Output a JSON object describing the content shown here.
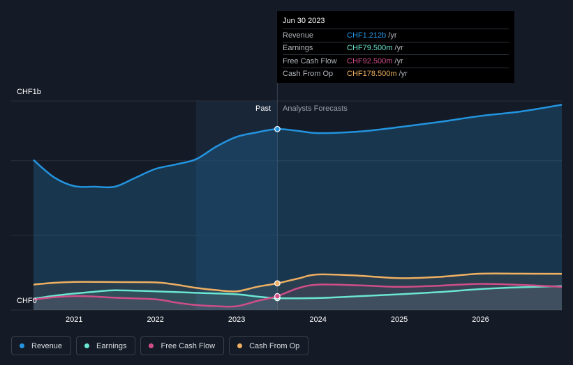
{
  "colors": {
    "revenue": "#2394df",
    "earnings": "#6be6d0",
    "free_cash_flow": "#d04e88",
    "cash_from_op": "#efb062",
    "background": "#151b26",
    "grid": "#2a303b"
  },
  "tooltip": {
    "date": "Jun 30 2023",
    "rows": [
      {
        "label": "Revenue",
        "value": "CHF1.212b",
        "unit": "/yr",
        "color": "#2394df"
      },
      {
        "label": "Earnings",
        "value": "CHF79.500m",
        "unit": "/yr",
        "color": "#6be6d0"
      },
      {
        "label": "Free Cash Flow",
        "value": "CHF92.500m",
        "unit": "/yr",
        "color": "#d04e88"
      },
      {
        "label": "Cash From Op",
        "value": "CHF178.500m",
        "unit": "/yr",
        "color": "#efb062"
      }
    ]
  },
  "regions": {
    "past_label": "Past",
    "forecast_label": "Analysts Forecasts"
  },
  "legend": [
    {
      "label": "Revenue",
      "color": "#2394df"
    },
    {
      "label": "Earnings",
      "color": "#6be6d0"
    },
    {
      "label": "Free Cash Flow",
      "color": "#d04e88"
    },
    {
      "label": "Cash From Op",
      "color": "#efb062"
    }
  ],
  "chart_data": {
    "type": "line",
    "y_top_label": "CHF1b",
    "y_bottom_label": "CHF0",
    "ylim": [
      0,
      1.4
    ],
    "xlim": [
      2020.5,
      2027.0
    ],
    "x_ticks": [
      2021,
      2022,
      2023,
      2024,
      2025,
      2026
    ],
    "tick_labels": [
      "2021",
      "2022",
      "2023",
      "2024",
      "2025",
      "2026"
    ],
    "past_end": 2023.5,
    "highlight_start": 2022.5,
    "grid": true,
    "legend_position": "bottom-left",
    "series": [
      {
        "name": "Revenue",
        "key": "revenue",
        "x": [
          2020.5,
          2020.75,
          2021.0,
          2021.25,
          2021.5,
          2021.75,
          2022.0,
          2022.25,
          2022.5,
          2022.75,
          2023.0,
          2023.25,
          2023.5,
          2023.75,
          2024.0,
          2024.5,
          2025.0,
          2025.5,
          2026.0,
          2026.5,
          2027.0
        ],
        "y": [
          1.005,
          0.89,
          0.83,
          0.826,
          0.826,
          0.885,
          0.945,
          0.975,
          1.01,
          1.095,
          1.16,
          1.19,
          1.212,
          1.2,
          1.185,
          1.195,
          1.225,
          1.26,
          1.3,
          1.33,
          1.375
        ]
      },
      {
        "name": "Earnings",
        "key": "earnings",
        "x": [
          2020.5,
          2020.75,
          2021.0,
          2021.25,
          2021.5,
          2022.0,
          2022.5,
          2023.0,
          2023.25,
          2023.5,
          2024.0,
          2024.5,
          2025.0,
          2025.5,
          2026.0,
          2026.5,
          2027.0
        ],
        "y": [
          0.075,
          0.095,
          0.11,
          0.122,
          0.132,
          0.125,
          0.115,
          0.105,
          0.09,
          0.0795,
          0.08,
          0.092,
          0.105,
          0.12,
          0.14,
          0.152,
          0.16
        ]
      },
      {
        "name": "Free Cash Flow",
        "key": "free_cash_flow",
        "x": [
          2020.5,
          2020.75,
          2021.0,
          2021.25,
          2021.5,
          2022.0,
          2022.25,
          2022.5,
          2022.75,
          2023.0,
          2023.25,
          2023.5,
          2023.75,
          2024.0,
          2024.5,
          2025.0,
          2025.5,
          2026.0,
          2026.5,
          2027.0
        ],
        "y": [
          0.07,
          0.085,
          0.093,
          0.09,
          0.082,
          0.072,
          0.05,
          0.033,
          0.025,
          0.025,
          0.06,
          0.0925,
          0.145,
          0.17,
          0.165,
          0.155,
          0.163,
          0.175,
          0.168,
          0.155
        ]
      },
      {
        "name": "Cash From Op",
        "key": "cash_from_op",
        "x": [
          2020.5,
          2020.75,
          2021.0,
          2021.25,
          2021.5,
          2022.0,
          2022.25,
          2022.5,
          2022.75,
          2023.0,
          2023.25,
          2023.5,
          2023.75,
          2024.0,
          2024.5,
          2025.0,
          2025.5,
          2026.0,
          2026.5,
          2027.0
        ],
        "y": [
          0.17,
          0.182,
          0.188,
          0.188,
          0.187,
          0.185,
          0.17,
          0.148,
          0.133,
          0.125,
          0.155,
          0.1785,
          0.21,
          0.238,
          0.23,
          0.213,
          0.222,
          0.243,
          0.243,
          0.242
        ]
      }
    ]
  }
}
